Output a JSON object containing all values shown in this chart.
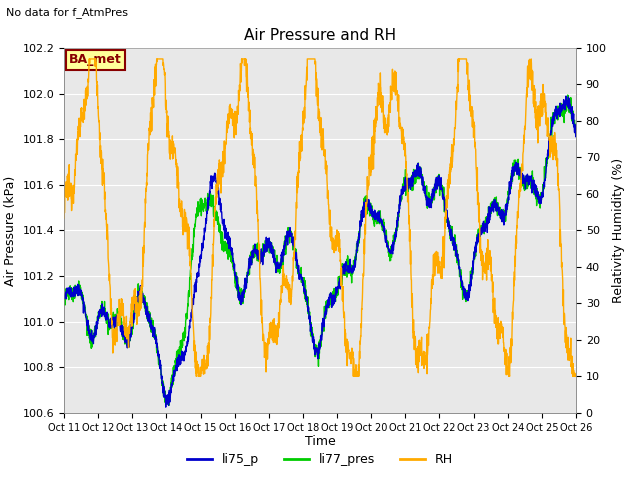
{
  "title": "Air Pressure and RH",
  "top_left_text": "No data for f_AtmPres",
  "box_label": "BA_met",
  "xlabel": "Time",
  "ylabel_left": "Air Pressure (kPa)",
  "ylabel_right": "Relativity Humidity (%)",
  "ylim_left": [
    100.6,
    102.2
  ],
  "ylim_right": [
    0,
    100
  ],
  "yticks_left": [
    100.6,
    100.8,
    101.0,
    101.2,
    101.4,
    101.6,
    101.8,
    102.0,
    102.2
  ],
  "yticks_right": [
    0,
    10,
    20,
    30,
    40,
    50,
    60,
    70,
    80,
    90,
    100
  ],
  "xtick_labels": [
    "Oct 11",
    "Oct 12",
    "Oct 13",
    "Oct 14",
    "Oct 15",
    "Oct 16",
    "Oct 17",
    "Oct 18",
    "Oct 19",
    "Oct 20",
    "Oct 21",
    "Oct 22",
    "Oct 23",
    "Oct 24",
    "Oct 25",
    "Oct 26"
  ],
  "color_li75": "#0000cc",
  "color_li77": "#00cc00",
  "color_rh": "#ffaa00",
  "legend_entries": [
    "li75_p",
    "li77_pres",
    "RH"
  ],
  "plot_bg_color": "#e8e8e8",
  "fig_bg_color": "#ffffff",
  "grid_color": "#ffffff",
  "box_facecolor": "#ffff99",
  "box_edgecolor": "#880000",
  "box_textcolor": "#880000"
}
